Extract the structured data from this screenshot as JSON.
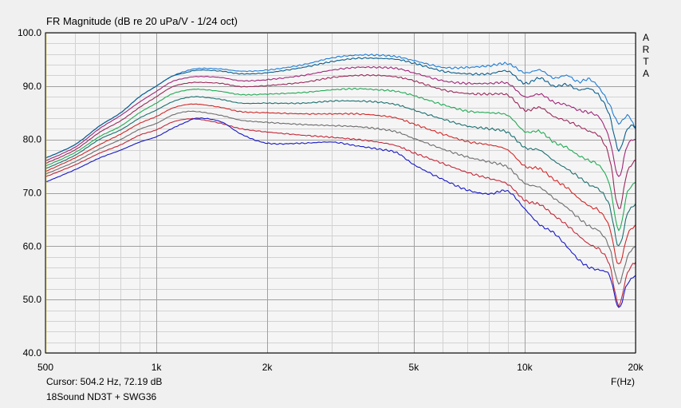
{
  "chart_data": {
    "type": "line",
    "title": "FR Magnitude (dB re 20 uPa/V - 1/24 oct)",
    "xlabel": "F(Hz)",
    "ylabel": "",
    "x_scale": "log",
    "xlim": [
      500,
      20000
    ],
    "ylim": [
      40,
      100
    ],
    "grid": true,
    "x_ticks": [
      {
        "value": 500,
        "label": "500"
      },
      {
        "value": 1000,
        "label": "1k"
      },
      {
        "value": 2000,
        "label": "2k"
      },
      {
        "value": 5000,
        "label": "5k"
      },
      {
        "value": 10000,
        "label": "10k"
      },
      {
        "value": 20000,
        "label": "20k"
      }
    ],
    "y_ticks": [
      {
        "value": 40,
        "label": "40.0"
      },
      {
        "value": 50,
        "label": "50.0"
      },
      {
        "value": 60,
        "label": "60.0"
      },
      {
        "value": 70,
        "label": "70.0"
      },
      {
        "value": 80,
        "label": "80.0"
      },
      {
        "value": 90,
        "label": "90.0"
      },
      {
        "value": 100,
        "label": "100.0"
      }
    ],
    "series": [
      {
        "color": "#1e7dd6",
        "x": [
          500,
          600,
          700,
          800,
          900,
          1000,
          1100,
          1200,
          1300,
          1500,
          1700,
          2000,
          2500,
          3000,
          3500,
          4000,
          4500,
          5000,
          6000,
          7000,
          8000,
          9000,
          10000,
          11000,
          12000,
          13000,
          14000,
          15000,
          16000,
          17000,
          18000,
          19000,
          20000
        ],
        "y": [
          76.5,
          79,
          82.5,
          85,
          88,
          90,
          91.8,
          92.8,
          93.3,
          93.2,
          92.8,
          93,
          94,
          95.3,
          95.8,
          95.8,
          95.5,
          94.8,
          93.5,
          93.5,
          93.8,
          94.2,
          92.5,
          93,
          91.5,
          92,
          90.8,
          91.3,
          89.5,
          86.5,
          83,
          84.5,
          82
        ]
      },
      {
        "color": "#0a5f8c",
        "x": [
          500,
          600,
          700,
          800,
          900,
          1000,
          1100,
          1200,
          1300,
          1500,
          1700,
          2000,
          2500,
          3000,
          3500,
          4000,
          4500,
          5000,
          6000,
          7000,
          8000,
          9000,
          10000,
          11000,
          12000,
          13000,
          14000,
          15000,
          16000,
          17000,
          18000,
          19000,
          20000
        ],
        "y": [
          76.5,
          79,
          82.5,
          85,
          88,
          90,
          91.8,
          92.5,
          93,
          92.8,
          92.3,
          92.5,
          93.5,
          94.6,
          95.2,
          95.2,
          95,
          94.3,
          92.8,
          92.3,
          92.3,
          92.8,
          90.5,
          91.5,
          90,
          90.3,
          89.3,
          89.5,
          88,
          84.5,
          78,
          82,
          82.5
        ]
      },
      {
        "color": "#a0267a",
        "x": [
          500,
          600,
          700,
          800,
          900,
          1000,
          1100,
          1200,
          1300,
          1500,
          1700,
          2000,
          2500,
          3000,
          3500,
          4000,
          4500,
          5000,
          6000,
          7000,
          8000,
          9000,
          10000,
          11000,
          12000,
          13000,
          14000,
          15000,
          16000,
          17000,
          18000,
          19000,
          20000
        ],
        "y": [
          76,
          78.5,
          82,
          84.5,
          87,
          89,
          90.8,
          91.5,
          91.8,
          91.6,
          91,
          91.2,
          92,
          93,
          93.5,
          93.5,
          93.3,
          92.5,
          91,
          90.5,
          90.5,
          90.5,
          88,
          88.5,
          87,
          86.5,
          85.5,
          85,
          84,
          80,
          73,
          79,
          80
        ]
      },
      {
        "color": "#9a2a5a",
        "x": [
          500,
          600,
          700,
          800,
          900,
          1000,
          1100,
          1200,
          1300,
          1500,
          1700,
          2000,
          2500,
          3000,
          3500,
          4000,
          4500,
          5000,
          6000,
          7000,
          8000,
          9000,
          10000,
          11000,
          12000,
          13000,
          14000,
          15000,
          16000,
          17000,
          18000,
          19000,
          20000
        ],
        "y": [
          75.5,
          78,
          81.3,
          83.5,
          86,
          88,
          89.8,
          90.5,
          90.7,
          90.5,
          89.9,
          90.1,
          90.7,
          91.6,
          92,
          92,
          91.7,
          91,
          89.3,
          88.6,
          88.5,
          88.3,
          85.5,
          86,
          84.3,
          83.5,
          82.5,
          81.5,
          80.5,
          76.5,
          67,
          74,
          76
        ]
      },
      {
        "color": "#22aa55",
        "x": [
          500,
          600,
          700,
          800,
          900,
          1000,
          1100,
          1200,
          1300,
          1500,
          1700,
          2000,
          2500,
          3000,
          3500,
          4000,
          4500,
          5000,
          6000,
          7000,
          8000,
          9000,
          10000,
          11000,
          12000,
          13000,
          14000,
          15000,
          16000,
          17000,
          18000,
          19000,
          20000
        ],
        "y": [
          75,
          77.5,
          80.5,
          82.5,
          85,
          86.8,
          88.5,
          89.2,
          89.4,
          89,
          88.4,
          88.5,
          88.8,
          89.3,
          89.5,
          89.3,
          89,
          88.2,
          86.5,
          85.3,
          85,
          84.5,
          81.5,
          81.5,
          79.5,
          78.5,
          77,
          76,
          75,
          71.5,
          63,
          70,
          72
        ]
      },
      {
        "color": "#1d7070",
        "x": [
          500,
          600,
          700,
          800,
          900,
          1000,
          1100,
          1200,
          1300,
          1500,
          1700,
          2000,
          2500,
          3000,
          3500,
          4000,
          4500,
          5000,
          6000,
          7000,
          8000,
          9000,
          10000,
          11000,
          12000,
          13000,
          14000,
          15000,
          16000,
          17000,
          18000,
          19000,
          20000
        ],
        "y": [
          74.5,
          77,
          80,
          81.8,
          84,
          85.5,
          87,
          87.8,
          88,
          87.5,
          86.8,
          86.8,
          86.8,
          87.2,
          87.2,
          87,
          86.5,
          85.5,
          83.8,
          82.5,
          82,
          81.3,
          78.5,
          78,
          76,
          74.5,
          73,
          71.5,
          70.5,
          67.5,
          60,
          66,
          68
        ]
      },
      {
        "color": "#d22828",
        "x": [
          500,
          600,
          700,
          800,
          900,
          1000,
          1100,
          1200,
          1300,
          1500,
          1700,
          2000,
          2500,
          3000,
          3500,
          4000,
          4500,
          5000,
          6000,
          7000,
          8000,
          9000,
          10000,
          11000,
          12000,
          13000,
          14000,
          15000,
          16000,
          17000,
          18000,
          19000,
          20000
        ],
        "y": [
          74,
          76.5,
          79,
          81,
          83,
          84.3,
          85.8,
          86.5,
          86.6,
          86,
          85.2,
          85,
          84.8,
          84.8,
          84.8,
          84.5,
          84,
          82.9,
          81,
          79.6,
          79,
          78,
          75,
          74.5,
          72.5,
          71,
          69,
          67.5,
          66.5,
          63.5,
          56.5,
          62,
          64
        ]
      },
      {
        "color": "#6e6e6e",
        "x": [
          500,
          600,
          700,
          800,
          900,
          1000,
          1100,
          1200,
          1300,
          1500,
          1700,
          2000,
          2500,
          3000,
          3500,
          4000,
          4500,
          5000,
          6000,
          7000,
          8000,
          9000,
          10000,
          11000,
          12000,
          13000,
          14000,
          15000,
          16000,
          17000,
          18000,
          19000,
          20000
        ],
        "y": [
          73.5,
          75.8,
          78.2,
          80,
          81.9,
          83,
          84.5,
          85.2,
          85.2,
          84.5,
          83.6,
          83.2,
          82.8,
          82.6,
          82.4,
          82,
          81.4,
          80.2,
          78.2,
          76.7,
          75.8,
          74.8,
          71.8,
          71,
          69,
          67.3,
          65.3,
          63.7,
          62.7,
          59.7,
          53,
          58,
          60
        ]
      },
      {
        "color": "#c42a3a",
        "x": [
          500,
          600,
          700,
          800,
          900,
          1000,
          1100,
          1200,
          1300,
          1500,
          1700,
          2000,
          2500,
          3000,
          3500,
          4000,
          4500,
          5000,
          6000,
          7000,
          8000,
          9000,
          10000,
          11000,
          12000,
          13000,
          14000,
          15000,
          16000,
          17000,
          18000,
          19000,
          20000
        ],
        "y": [
          73,
          75.2,
          77.4,
          79,
          80.8,
          81.8,
          83.2,
          83.8,
          83.8,
          83,
          82,
          81.4,
          80.8,
          80.4,
          80,
          79.5,
          78.8,
          77.5,
          75.5,
          73.8,
          72.7,
          71.6,
          68.6,
          67.8,
          65.8,
          64,
          62,
          60.3,
          59.3,
          56.5,
          49,
          55,
          57
        ]
      },
      {
        "color": "#1818c8",
        "x": [
          500,
          600,
          700,
          800,
          900,
          1000,
          1100,
          1200,
          1300,
          1500,
          1700,
          2000,
          2500,
          3000,
          3500,
          4000,
          4500,
          5000,
          6000,
          7000,
          8000,
          9000,
          10000,
          11000,
          12000,
          13000,
          14000,
          15000,
          16000,
          17000,
          18000,
          19000,
          20000
        ],
        "y": [
          72,
          74.3,
          76.5,
          78,
          79.5,
          80.5,
          82,
          83.2,
          84,
          83.3,
          81,
          79.3,
          79.3,
          79.5,
          78.8,
          78.2,
          77.5,
          75.3,
          72.5,
          70.5,
          69.8,
          70.3,
          67,
          64,
          62.5,
          60,
          57.5,
          56,
          55.5,
          54.5,
          48.5,
          53,
          54.5
        ]
      }
    ]
  },
  "brand": [
    "A",
    "R",
    "T",
    "A"
  ],
  "cursor_text": "Cursor: 504.2 Hz, 72.19 dB",
  "note_text": "18Sound ND3T + SWG36",
  "colors": {
    "plot_bg": "#f5f5f5",
    "page_bg": "#f0f0f0",
    "major_grid": "#a0a0a0",
    "minor_grid": "#d2d2d2",
    "left_edge": "#e0d060"
  }
}
